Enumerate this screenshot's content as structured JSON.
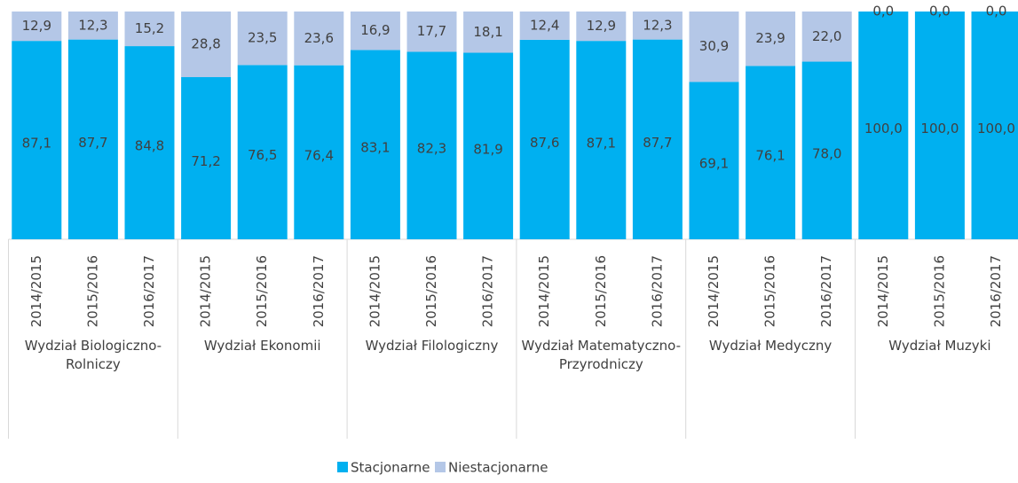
{
  "chart_data": {
    "type": "stacked_bar",
    "categories": [
      "2014/2015",
      "2015/2016",
      "2016/2017",
      "2014/2015",
      "2015/2016",
      "2016/2017",
      "2014/2015",
      "2015/2016",
      "2016/2017",
      "2014/2015",
      "2015/2016",
      "2016/2017",
      "2014/2015",
      "2015/2016",
      "2016/2017",
      "2014/2015",
      "2015/2016",
      "2016/2017"
    ],
    "groups": [
      "Wydział Biologiczno-Rolniczy",
      "Wydział Ekonomii",
      "Wydział Filologiczny",
      "Wydział Matematyczno-Przyrodniczy",
      "Wydział Medyczny",
      "Wydział Muzyki"
    ],
    "series": [
      {
        "name": "Stacjonarne",
        "color": "#00b0f0",
        "values": [
          87.1,
          87.7,
          84.8,
          71.2,
          76.5,
          76.4,
          83.1,
          82.3,
          81.9,
          87.6,
          87.1,
          87.7,
          69.1,
          76.1,
          78.0,
          100,
          100,
          100
        ],
        "value_labels": [
          "87,1",
          "87,7",
          "84,8",
          "71,2",
          "76,5",
          "76,4",
          "83,1",
          "82,3",
          "81,9",
          "87,6",
          "87,1",
          "87,7",
          "69,1",
          "76,1",
          "78,0",
          "100,0",
          "100,0",
          "100,0"
        ]
      },
      {
        "name": "Niestacjonarne",
        "color": "#b4c7e7",
        "values": [
          12.9,
          12.3,
          15.2,
          28.8,
          23.5,
          23.6,
          16.9,
          17.7,
          18.1,
          12.4,
          12.9,
          12.3,
          30.9,
          23.9,
          22.0,
          0,
          0,
          0
        ],
        "value_labels": [
          "12,9",
          "12,3",
          "15,2",
          "28,8",
          "23,5",
          "23,6",
          "16,9",
          "17,7",
          "18,1",
          "12,4",
          "12,9",
          "12,3",
          "30,9",
          "23,9",
          "22,0",
          "0,0",
          "0,0",
          "0,0"
        ]
      }
    ],
    "ylim": [
      0,
      100
    ],
    "legend": "bottom"
  }
}
